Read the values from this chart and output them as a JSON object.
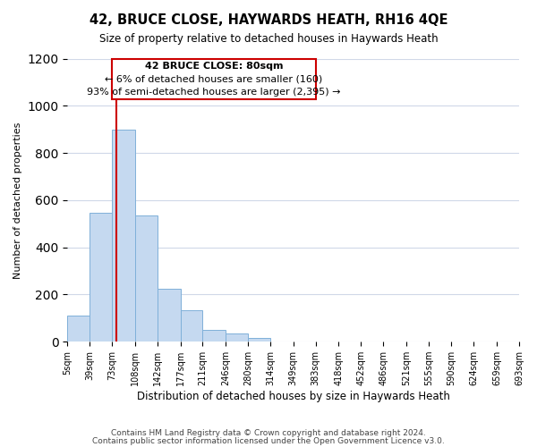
{
  "title": "42, BRUCE CLOSE, HAYWARDS HEATH, RH16 4QE",
  "subtitle": "Size of property relative to detached houses in Haywards Heath",
  "xlabel": "Distribution of detached houses by size in Haywards Heath",
  "ylabel": "Number of detached properties",
  "footnote1": "Contains HM Land Registry data © Crown copyright and database right 2024.",
  "footnote2": "Contains public sector information licensed under the Open Government Licence v3.0.",
  "bin_edges": [
    5,
    39,
    73,
    108,
    142,
    177,
    211,
    246,
    280,
    314,
    349,
    383,
    418,
    452,
    486,
    521,
    555,
    590,
    624,
    659,
    693
  ],
  "bin_labels": [
    "5sqm",
    "39sqm",
    "73sqm",
    "108sqm",
    "142sqm",
    "177sqm",
    "211sqm",
    "246sqm",
    "280sqm",
    "314sqm",
    "349sqm",
    "383sqm",
    "418sqm",
    "452sqm",
    "486sqm",
    "521sqm",
    "555sqm",
    "590sqm",
    "624sqm",
    "659sqm",
    "693sqm"
  ],
  "bar_heights": [
    110,
    545,
    900,
    535,
    225,
    135,
    50,
    35,
    15,
    0,
    0,
    0,
    0,
    0,
    0,
    0,
    0,
    0,
    0,
    0
  ],
  "bar_color": "#c5d9f0",
  "bar_edgecolor": "#7fb0d9",
  "vline_x": 80,
  "vline_color": "#cc0000",
  "annotation_title": "42 BRUCE CLOSE: 80sqm",
  "annotation_line1": "← 6% of detached houses are smaller (160)",
  "annotation_line2": "93% of semi-detached houses are larger (2,395) →",
  "annotation_box_color": "#ffffff",
  "annotation_box_edgecolor": "#cc0000",
  "ylim": [
    0,
    1200
  ],
  "yticks": [
    0,
    200,
    400,
    600,
    800,
    1000,
    1200
  ],
  "background_color": "#ffffff",
  "grid_color": "#d0d8e8"
}
